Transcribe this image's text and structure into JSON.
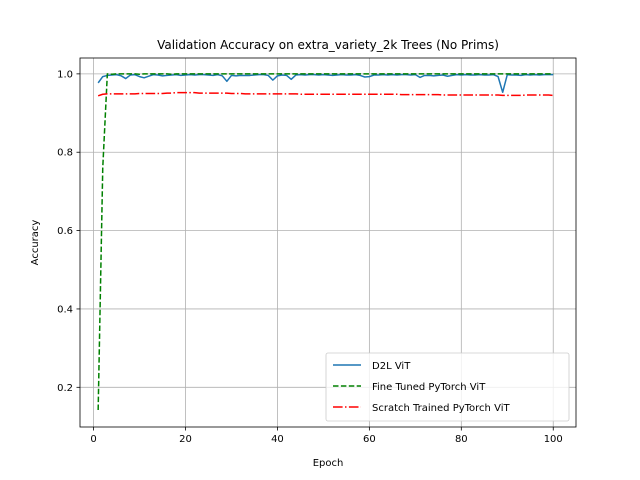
{
  "chart_data": {
    "type": "line",
    "title": "Validation Accuracy on extra_variety_2k Trees (No Prims)",
    "xlabel": "Epoch",
    "ylabel": "Accuracy",
    "xlim": [
      -2.95,
      104.95
    ],
    "ylim": [
      0.0987,
      1.0405
    ],
    "xticks": [
      0,
      20,
      40,
      60,
      80,
      100
    ],
    "yticks": [
      0.2,
      0.4,
      0.6,
      0.8,
      1.0
    ],
    "xtick_labels": [
      "0",
      "20",
      "40",
      "60",
      "80",
      "100"
    ],
    "ytick_labels": [
      "0.2",
      "0.4",
      "0.6",
      "0.8",
      "1.0"
    ],
    "grid": true,
    "legend_position": "lower-right",
    "series": [
      {
        "name": "D2L ViT",
        "color": "#1f77b4",
        "style": "solid",
        "x": [
          1,
          2,
          3,
          4,
          5,
          6,
          7,
          8,
          9,
          10,
          11,
          12,
          13,
          14,
          15,
          16,
          17,
          18,
          19,
          20,
          21,
          22,
          23,
          24,
          25,
          26,
          27,
          28,
          29,
          30,
          31,
          32,
          33,
          34,
          35,
          36,
          37,
          38,
          39,
          40,
          41,
          42,
          43,
          44,
          45,
          46,
          47,
          48,
          49,
          50,
          51,
          52,
          53,
          54,
          55,
          56,
          57,
          58,
          59,
          60,
          61,
          62,
          63,
          64,
          65,
          66,
          67,
          68,
          69,
          70,
          71,
          72,
          73,
          74,
          75,
          76,
          77,
          78,
          79,
          80,
          81,
          82,
          83,
          84,
          85,
          86,
          87,
          88,
          89,
          90,
          91,
          92,
          93,
          94,
          95,
          96,
          97,
          98,
          99,
          100
        ],
        "y": [
          0.977,
          0.993,
          0.996,
          0.997,
          0.998,
          0.995,
          0.988,
          0.997,
          0.998,
          0.993,
          0.99,
          0.994,
          0.998,
          0.997,
          0.995,
          0.996,
          0.997,
          0.998,
          0.996,
          0.997,
          0.998,
          0.997,
          0.998,
          0.998,
          0.997,
          0.996,
          0.998,
          0.995,
          0.981,
          0.996,
          0.995,
          0.996,
          0.996,
          0.996,
          0.997,
          0.998,
          0.998,
          0.996,
          0.984,
          0.995,
          0.997,
          0.996,
          0.986,
          0.997,
          0.998,
          0.997,
          0.998,
          0.998,
          0.997,
          0.998,
          0.997,
          0.996,
          0.997,
          0.998,
          0.997,
          0.997,
          0.998,
          0.996,
          0.992,
          0.993,
          0.997,
          0.997,
          0.998,
          0.997,
          0.998,
          0.997,
          0.998,
          0.998,
          0.997,
          0.998,
          0.991,
          0.996,
          0.996,
          0.995,
          0.996,
          0.997,
          0.994,
          0.996,
          0.998,
          0.997,
          0.998,
          0.997,
          0.997,
          0.998,
          0.997,
          0.997,
          0.998,
          0.993,
          0.953,
          0.998,
          0.997,
          0.997,
          0.996,
          0.998,
          0.997,
          0.998,
          0.997,
          0.998,
          0.998,
          0.998
        ]
      },
      {
        "name": "Fine Tuned PyTorch ViT",
        "color": "#008000",
        "style": "dashed",
        "x": [
          1,
          2,
          3,
          4,
          5,
          6,
          7,
          8,
          9,
          10,
          11,
          12,
          13,
          14,
          15,
          16,
          17,
          18,
          19,
          20,
          21,
          22,
          23,
          24,
          25,
          26,
          27,
          28,
          29,
          30,
          31,
          32,
          33,
          34,
          35,
          36,
          37,
          38,
          39,
          40,
          41,
          42,
          43,
          44,
          45,
          46,
          47,
          48,
          49,
          50,
          51,
          52,
          53,
          54,
          55,
          56,
          57,
          58,
          59,
          60,
          61,
          62,
          63,
          64,
          65,
          66,
          67,
          68,
          69,
          70,
          71,
          72,
          73,
          74,
          75,
          76,
          77,
          78,
          79,
          80,
          81,
          82,
          83,
          84,
          85,
          86,
          87,
          88,
          89,
          90,
          91,
          92,
          93,
          94,
          95,
          96,
          97,
          98,
          99,
          100
        ],
        "y": [
          0.142,
          0.76,
          1.0,
          0.999,
          1.0,
          1.0,
          1.0,
          1.0,
          1.0,
          0.999,
          1.0,
          1.0,
          1.0,
          1.0,
          1.0,
          1.0,
          0.999,
          1.0,
          1.0,
          1.0,
          1.0,
          1.0,
          1.0,
          1.0,
          1.0,
          1.0,
          1.0,
          1.0,
          1.0,
          1.0,
          1.0,
          1.0,
          1.0,
          1.0,
          1.0,
          1.0,
          1.0,
          1.0,
          1.0,
          1.0,
          1.0,
          1.0,
          1.0,
          1.0,
          1.0,
          1.0,
          1.0,
          1.0,
          1.0,
          1.0,
          1.0,
          1.0,
          1.0,
          1.0,
          1.0,
          1.0,
          1.0,
          1.0,
          1.0,
          1.0,
          1.0,
          1.0,
          1.0,
          1.0,
          1.0,
          1.0,
          1.0,
          1.0,
          1.0,
          1.0,
          1.0,
          1.0,
          1.0,
          1.0,
          1.0,
          1.0,
          1.0,
          1.0,
          1.0,
          1.0,
          1.0,
          1.0,
          1.0,
          1.0,
          1.0,
          1.0,
          1.0,
          1.0,
          1.0,
          1.0,
          1.0,
          1.0,
          1.0,
          1.0,
          1.0,
          1.0,
          1.0,
          1.0,
          1.0,
          1.0
        ]
      },
      {
        "name": "Scratch Trained PyTorch ViT",
        "color": "#ff0000",
        "style": "dashdot",
        "x": [
          1,
          2,
          3,
          4,
          5,
          6,
          7,
          8,
          9,
          10,
          11,
          12,
          13,
          14,
          15,
          16,
          17,
          18,
          19,
          20,
          21,
          22,
          23,
          24,
          25,
          26,
          27,
          28,
          29,
          30,
          31,
          32,
          33,
          34,
          35,
          36,
          37,
          38,
          39,
          40,
          41,
          42,
          43,
          44,
          45,
          46,
          47,
          48,
          49,
          50,
          51,
          52,
          53,
          54,
          55,
          56,
          57,
          58,
          59,
          60,
          61,
          62,
          63,
          64,
          65,
          66,
          67,
          68,
          69,
          70,
          71,
          72,
          73,
          74,
          75,
          76,
          77,
          78,
          79,
          80,
          81,
          82,
          83,
          84,
          85,
          86,
          87,
          88,
          89,
          90,
          91,
          92,
          93,
          94,
          95,
          96,
          97,
          98,
          99,
          100
        ],
        "y": [
          0.944,
          0.948,
          0.949,
          0.949,
          0.949,
          0.949,
          0.949,
          0.949,
          0.949,
          0.95,
          0.95,
          0.95,
          0.95,
          0.95,
          0.95,
          0.951,
          0.951,
          0.952,
          0.952,
          0.952,
          0.952,
          0.952,
          0.951,
          0.951,
          0.951,
          0.951,
          0.951,
          0.951,
          0.951,
          0.95,
          0.95,
          0.95,
          0.949,
          0.949,
          0.949,
          0.949,
          0.949,
          0.949,
          0.949,
          0.949,
          0.949,
          0.949,
          0.949,
          0.949,
          0.948,
          0.948,
          0.948,
          0.948,
          0.948,
          0.948,
          0.948,
          0.948,
          0.948,
          0.948,
          0.948,
          0.948,
          0.948,
          0.948,
          0.948,
          0.948,
          0.948,
          0.948,
          0.948,
          0.948,
          0.948,
          0.948,
          0.947,
          0.947,
          0.947,
          0.947,
          0.947,
          0.947,
          0.947,
          0.947,
          0.947,
          0.946,
          0.946,
          0.946,
          0.946,
          0.946,
          0.946,
          0.946,
          0.946,
          0.946,
          0.946,
          0.946,
          0.946,
          0.946,
          0.945,
          0.945,
          0.945,
          0.945,
          0.945,
          0.946,
          0.946,
          0.946,
          0.946,
          0.946,
          0.946,
          0.945
        ]
      }
    ]
  }
}
